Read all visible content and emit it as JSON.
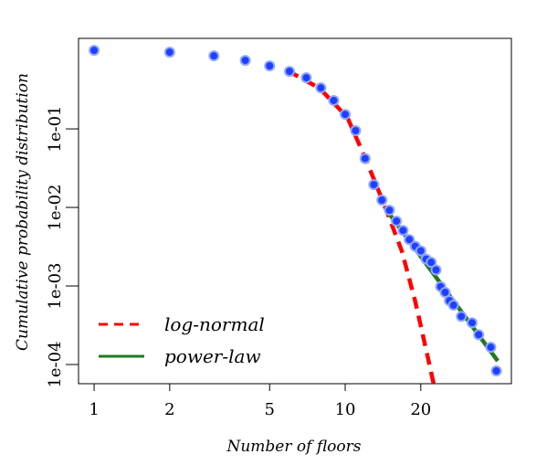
{
  "chart_data": {
    "type": "scatter",
    "xlabel": "Number of floors",
    "ylabel": "Cumulative probability distribution",
    "xscale": "log",
    "yscale": "log",
    "xlim": [
      0.867,
      45.9
    ],
    "ylim": [
      5.7e-05,
      1.42
    ],
    "xticks": [
      1,
      2,
      5,
      10,
      20
    ],
    "yticks": [
      {
        "value": 0.1,
        "label": "1e-01"
      },
      {
        "value": 0.01,
        "label": "1e-02"
      },
      {
        "value": 0.001,
        "label": "1e-03"
      },
      {
        "value": 0.0001,
        "label": "1e-04"
      }
    ],
    "color": "#1f3fff",
    "x": [
      1,
      2,
      3,
      4,
      5,
      6,
      7,
      8,
      9,
      10,
      11,
      12,
      13,
      14,
      15,
      16,
      17,
      18,
      19,
      20,
      21,
      22,
      23,
      24,
      25,
      26,
      27,
      29,
      32,
      34,
      38,
      40
    ],
    "values": [
      1.0,
      0.948,
      0.85,
      0.745,
      0.634,
      0.54,
      0.448,
      0.333,
      0.23,
      0.153,
      0.095,
      0.042,
      0.0195,
      0.0124,
      0.0092,
      0.0067,
      0.0051,
      0.0039,
      0.0032,
      0.0028,
      0.0022,
      0.002,
      0.0016,
      0.00098,
      0.00083,
      0.00065,
      0.00057,
      0.00041,
      0.00034,
      0.00024,
      0.000166,
      8.3e-05
    ],
    "legend": "bottom left",
    "series": [
      {
        "name": "log-normal",
        "color": "#ff0000",
        "style": "dashed",
        "x": [
          5.9,
          7.9,
          10.2,
          12,
          14.2,
          16.8,
          19,
          20.7,
          22.5
        ],
        "values": [
          0.55,
          0.33,
          0.14,
          0.043,
          0.0115,
          0.0028,
          0.00064,
          0.00019,
          5.7e-05
        ]
      },
      {
        "name": "power-law",
        "color": "#1e7a1e",
        "style": "solid",
        "x": [
          14.45,
          40.5
        ],
        "values": [
          0.0097,
          0.000111
        ]
      }
    ]
  }
}
